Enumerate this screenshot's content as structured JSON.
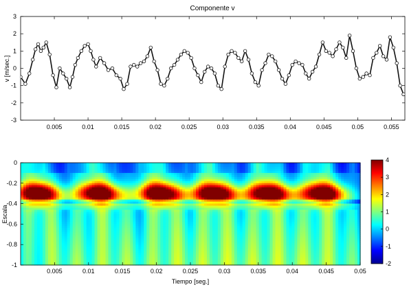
{
  "chart_data": [
    {
      "type": "line",
      "title": "Componente v",
      "xlabel": "",
      "ylabel": "v [m/sec.]",
      "xlim": [
        0.0,
        0.057
      ],
      "ylim": [
        -3,
        3
      ],
      "xticks": [
        "0.005",
        "0.01",
        "0.015",
        "0.02",
        "0.025",
        "0.03",
        "0.035",
        "0.04",
        "0.045",
        "0.05",
        "0.055"
      ],
      "yticks": [
        "3",
        "2",
        "1",
        "0",
        "-1",
        "-2",
        "-3"
      ],
      "grid": false,
      "marker": "circle",
      "series": [
        {
          "x": [
            0.0,
            0.0007,
            0.0013,
            0.0018,
            0.0022,
            0.0026,
            0.003,
            0.0034,
            0.0038,
            0.0043,
            0.0048,
            0.0053,
            0.0058,
            0.0063,
            0.0068,
            0.0073,
            0.0077,
            0.0081,
            0.0085,
            0.009,
            0.0095,
            0.01,
            0.0104,
            0.0108,
            0.0112,
            0.0118,
            0.0124,
            0.013,
            0.0136,
            0.0142,
            0.0148,
            0.0153,
            0.0158,
            0.0163,
            0.0168,
            0.0173,
            0.0178,
            0.0183,
            0.0188,
            0.0193,
            0.0198,
            0.0203,
            0.0208,
            0.0213,
            0.0218,
            0.0223,
            0.0228,
            0.0233,
            0.0238,
            0.0243,
            0.0248,
            0.0253,
            0.0258,
            0.0263,
            0.0268,
            0.0273,
            0.0278,
            0.0283,
            0.0288,
            0.0293,
            0.0298,
            0.0303,
            0.0308,
            0.0313,
            0.0318,
            0.0323,
            0.0328,
            0.0333,
            0.0338,
            0.0343,
            0.0348,
            0.0353,
            0.0358,
            0.0363,
            0.0368,
            0.0373,
            0.0378,
            0.0383,
            0.0388,
            0.0393,
            0.0398,
            0.0403,
            0.0408,
            0.0413,
            0.0418,
            0.0423,
            0.0428,
            0.0433,
            0.0438,
            0.0443,
            0.0448,
            0.0453,
            0.0458,
            0.0463,
            0.0468,
            0.0473,
            0.0478,
            0.0483,
            0.0488,
            0.0493,
            0.0498,
            0.0503,
            0.0508,
            0.0513,
            0.0518,
            0.0523,
            0.0528,
            0.0533,
            0.0538,
            0.0543,
            0.0548,
            0.0553,
            0.0558,
            0.0563,
            0.0568
          ],
          "y": [
            -0.5,
            -0.9,
            -0.3,
            0.5,
            1.1,
            1.4,
            1.0,
            1.2,
            1.5,
            0.8,
            -0.4,
            -1.1,
            0.0,
            -0.3,
            -0.6,
            -1.1,
            -0.5,
            0.2,
            0.6,
            1.0,
            1.3,
            1.4,
            1.0,
            0.5,
            0.1,
            0.6,
            0.3,
            -0.1,
            0.0,
            -0.4,
            -0.6,
            -1.2,
            -0.9,
            0.1,
            0.2,
            0.1,
            0.3,
            0.4,
            0.7,
            1.2,
            0.4,
            -0.1,
            -0.9,
            -1.0,
            -0.6,
            0.0,
            0.2,
            0.5,
            0.8,
            1.0,
            0.9,
            0.6,
            0.0,
            -0.4,
            -0.8,
            -0.2,
            0.1,
            0.0,
            -0.3,
            -1.0,
            -1.2,
            0.1,
            0.8,
            1.0,
            0.9,
            0.6,
            0.4,
            1.0,
            0.5,
            -0.3,
            -0.8,
            -1.0,
            -0.1,
            0.3,
            0.8,
            0.7,
            0.4,
            -0.1,
            -0.6,
            -0.9,
            -0.4,
            0.2,
            0.4,
            0.3,
            0.2,
            -0.3,
            -0.6,
            -0.2,
            0.1,
            0.8,
            1.5,
            1.0,
            0.9,
            0.7,
            1.1,
            1.5,
            1.2,
            0.6,
            1.9,
            1.0,
            0.0,
            -0.6,
            -0.5,
            -0.3,
            -0.4,
            0.6,
            0.9,
            1.3,
            0.7,
            0.5,
            1.8,
            1.2,
            0.3,
            -1.0,
            -1.5
          ]
        }
      ]
    },
    {
      "type": "heatmap",
      "title": "",
      "xlabel": "Tiempo [seg.]",
      "ylabel": "Escala",
      "xlim": [
        0.0,
        0.05
      ],
      "ylim": [
        -1,
        0
      ],
      "xticks": [
        "0.005",
        "0.01",
        "0.015",
        "0.02",
        "0.025",
        "0.03",
        "0.035",
        "0.04",
        "0.045",
        "0.05"
      ],
      "yticks": [
        "0",
        "-0.2",
        "-0.4",
        "-0.6",
        "-0.8",
        "-1"
      ],
      "colorbar": {
        "min": -2,
        "max": 4,
        "ticks": [
          "4",
          "3",
          "2",
          "1",
          "0",
          "-1",
          "-2"
        ],
        "colormap": "jet"
      },
      "ridge_centers_x": [
        0.0025,
        0.0115,
        0.0205,
        0.0285,
        0.0365,
        0.0445
      ],
      "band_center_scale": -0.3,
      "band_max_level": 4
    }
  ]
}
